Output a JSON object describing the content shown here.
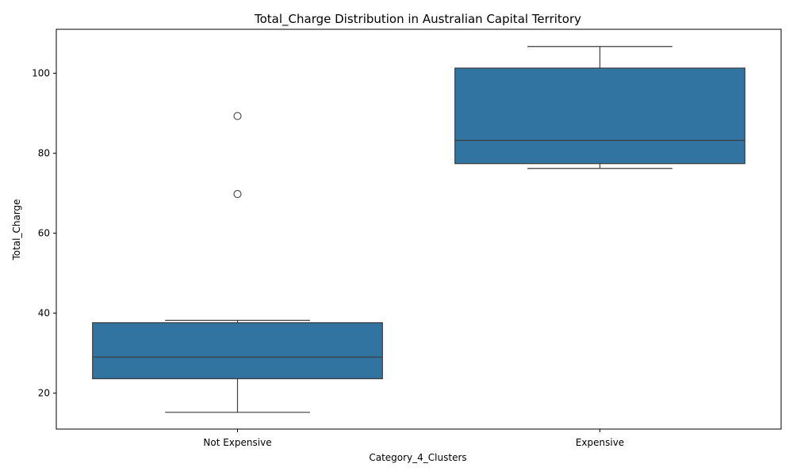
{
  "chart_data": {
    "type": "box",
    "title": "Total_Charge Distribution in Australian Capital Territory",
    "xlabel": "Category_4_Clusters",
    "ylabel": "Total_Charge",
    "ylim": [
      11,
      111
    ],
    "yticks": [
      20,
      40,
      60,
      80,
      100
    ],
    "grid": false,
    "box_color": "#3274a1",
    "line_color": "#3d3d3d",
    "categories": [
      "Not Expensive",
      "Expensive"
    ],
    "boxes": [
      {
        "category": "Not Expensive",
        "whisker_low": 15.2,
        "q1": 23.6,
        "median": 29.0,
        "q3": 37.6,
        "whisker_high": 38.2,
        "outliers": [
          69.8,
          89.3
        ]
      },
      {
        "category": "Expensive",
        "whisker_low": 76.2,
        "q1": 77.4,
        "median": 83.2,
        "q3": 101.3,
        "whisker_high": 106.7,
        "outliers": []
      }
    ]
  }
}
